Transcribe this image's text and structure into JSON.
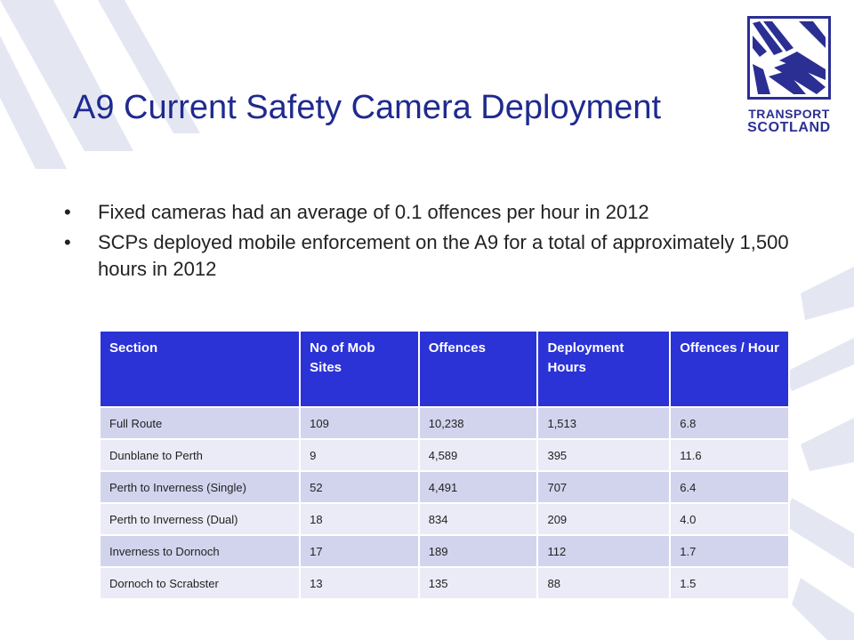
{
  "title": "A9 Current Safety Camera Deployment",
  "logo": {
    "line1": "TRANSPORT",
    "line2": "SCOTLAND"
  },
  "bullets": [
    "Fixed cameras had an average of 0.1 offences per hour in 2012",
    "SCPs deployed mobile enforcement on the A9 for a total of approximately 1,500 hours in 2012"
  ],
  "table": {
    "headers": [
      "Section",
      "No of Mob Sites",
      "Offences",
      "Deployment Hours",
      "Offences / Hour"
    ],
    "rows": [
      [
        "Full Route",
        "109",
        "10,238",
        "1,513",
        "6.8"
      ],
      [
        "Dunblane  to Perth",
        "9",
        "4,589",
        "395",
        "11.6"
      ],
      [
        "Perth to Inverness (Single)",
        "52",
        "4,491",
        "707",
        "6.4"
      ],
      [
        "Perth to Inverness (Dual)",
        "18",
        "834",
        "209",
        "4.0"
      ],
      [
        "Inverness to Dornoch",
        "17",
        "189",
        "112",
        "1.7"
      ],
      [
        "Dornoch to Scrabster",
        "13",
        "135",
        "88",
        "1.5"
      ]
    ]
  },
  "colors": {
    "title": "#1f2a8f",
    "header_bg": "#2b32d6",
    "row_dark": "#d2d4ee",
    "row_light": "#eaebf7",
    "logo": "#2b2f93"
  }
}
